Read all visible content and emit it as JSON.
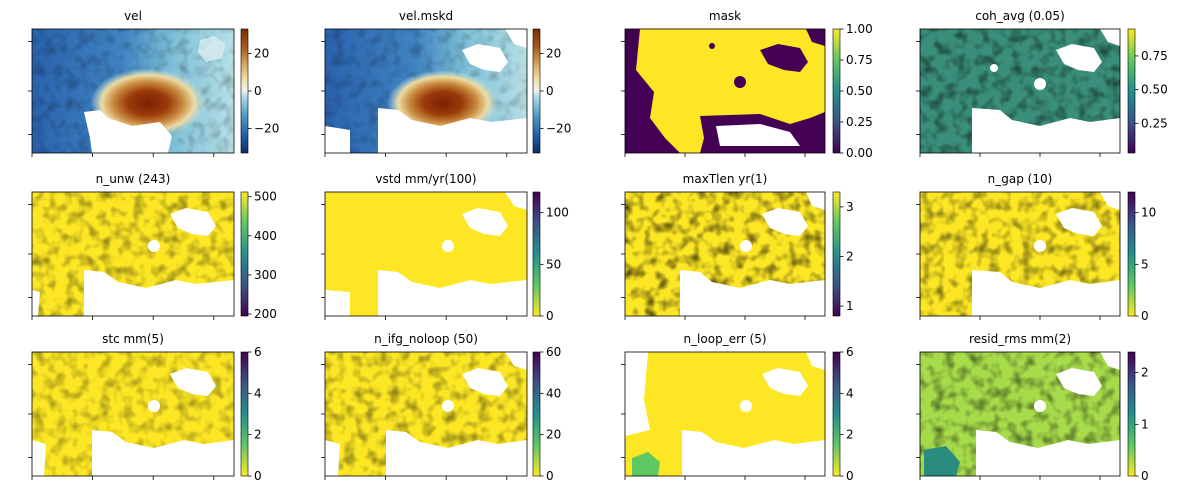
{
  "chart_data": [
    {
      "type": "heatmap",
      "title": "vel",
      "colormap": "RdYlBu_r-like",
      "colorbar": {
        "range": [
          -33,
          33
        ],
        "ticks": [
          {
            "v": 20,
            "label": "20"
          },
          {
            "v": 0,
            "label": "0"
          },
          {
            "v": -20,
            "label": "−20"
          }
        ]
      }
    },
    {
      "type": "heatmap",
      "title": "vel.mskd",
      "colormap": "RdYlBu_r-like",
      "colorbar": {
        "range": [
          -33,
          33
        ],
        "ticks": [
          {
            "v": 20,
            "label": "20"
          },
          {
            "v": 0,
            "label": "0"
          },
          {
            "v": -20,
            "label": "−20"
          }
        ]
      }
    },
    {
      "type": "heatmap",
      "title": "mask",
      "colormap": "viridis",
      "colorbar": {
        "range": [
          0,
          1
        ],
        "ticks": [
          {
            "v": 1,
            "label": "1.00"
          },
          {
            "v": 0.75,
            "label": "0.75"
          },
          {
            "v": 0.5,
            "label": "0.50"
          },
          {
            "v": 0.25,
            "label": "0.25"
          },
          {
            "v": 0,
            "label": "0.00"
          }
        ]
      }
    },
    {
      "type": "heatmap",
      "title": "coh_avg (0.05)",
      "colormap": "viridis",
      "colorbar": {
        "range": [
          0.03,
          0.95
        ],
        "ticks": [
          {
            "v": 0.75,
            "label": "0.75"
          },
          {
            "v": 0.5,
            "label": "0.50"
          },
          {
            "v": 0.25,
            "label": "0.25"
          }
        ]
      }
    },
    {
      "type": "heatmap",
      "title": "n_unw (243)",
      "colormap": "viridis",
      "colorbar": {
        "range": [
          195,
          512
        ],
        "ticks": [
          {
            "v": 500,
            "label": "500"
          },
          {
            "v": 400,
            "label": "400"
          },
          {
            "v": 300,
            "label": "300"
          },
          {
            "v": 200,
            "label": "200"
          }
        ]
      }
    },
    {
      "type": "heatmap",
      "title": "vstd mm/yr(100)",
      "colormap": "viridis_r",
      "colorbar": {
        "range": [
          0,
          120
        ],
        "ticks": [
          {
            "v": 100,
            "label": "100"
          },
          {
            "v": 50,
            "label": "50"
          },
          {
            "v": 0,
            "label": "0"
          }
        ]
      }
    },
    {
      "type": "heatmap",
      "title": "maxTlen yr(1)",
      "colormap": "viridis",
      "colorbar": {
        "range": [
          0.8,
          3.3
        ],
        "ticks": [
          {
            "v": 3,
            "label": "3"
          },
          {
            "v": 2,
            "label": "2"
          },
          {
            "v": 1,
            "label": "1"
          }
        ]
      }
    },
    {
      "type": "heatmap",
      "title": "n_gap (10)",
      "colormap": "viridis_r",
      "colorbar": {
        "range": [
          0,
          12
        ],
        "ticks": [
          {
            "v": 10,
            "label": "10"
          },
          {
            "v": 5,
            "label": "5"
          },
          {
            "v": 0,
            "label": "0"
          }
        ]
      }
    },
    {
      "type": "heatmap",
      "title": "stc mm(5)",
      "colormap": "viridis_r",
      "colorbar": {
        "range": [
          0,
          6
        ],
        "ticks": [
          {
            "v": 6,
            "label": "6"
          },
          {
            "v": 4,
            "label": "4"
          },
          {
            "v": 2,
            "label": "2"
          },
          {
            "v": 0,
            "label": "0"
          }
        ]
      }
    },
    {
      "type": "heatmap",
      "title": "n_ifg_noloop (50)",
      "colormap": "viridis_r",
      "colorbar": {
        "range": [
          0,
          60
        ],
        "ticks": [
          {
            "v": 60,
            "label": "60"
          },
          {
            "v": 40,
            "label": "40"
          },
          {
            "v": 20,
            "label": "20"
          },
          {
            "v": 0,
            "label": "0"
          }
        ]
      }
    },
    {
      "type": "heatmap",
      "title": "n_loop_err (5)",
      "colormap": "viridis_r",
      "colorbar": {
        "range": [
          0,
          6
        ],
        "ticks": [
          {
            "v": 6,
            "label": "6"
          },
          {
            "v": 4,
            "label": "4"
          },
          {
            "v": 2,
            "label": "2"
          },
          {
            "v": 0,
            "label": "0"
          }
        ]
      }
    },
    {
      "type": "heatmap",
      "title": "resid_rms mm(2)",
      "colormap": "viridis_r",
      "colorbar": {
        "range": [
          0,
          2.4
        ],
        "ticks": [
          {
            "v": 2,
            "label": "2"
          },
          {
            "v": 1,
            "label": "1"
          },
          {
            "v": 0,
            "label": "0"
          }
        ]
      }
    }
  ]
}
